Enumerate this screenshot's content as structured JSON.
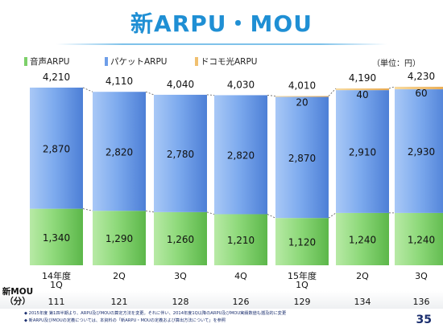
{
  "title": "新ARPU・MOU",
  "unit_label": "（単位：円）",
  "legend": [
    {
      "label": "音声ARPU",
      "color": "#7dd06a"
    },
    {
      "label": "パケットARPU",
      "color": "#6e9ee8"
    },
    {
      "label": "ドコモ光ARPU",
      "color": "#f0c070"
    }
  ],
  "chart_data": {
    "type": "bar",
    "stacked": true,
    "categories": [
      "14年度\n1Q",
      "2Q",
      "3Q",
      "4Q",
      "15年度\n1Q",
      "2Q",
      "3Q"
    ],
    "series": [
      {
        "name": "音声ARPU",
        "values": [
          1340,
          1290,
          1260,
          1210,
          1120,
          1240,
          1240
        ],
        "labels": [
          "1,340",
          "1,290",
          "1,260",
          "1,210",
          "1,120",
          "1,240",
          "1,240"
        ],
        "color": "#7dd06a"
      },
      {
        "name": "パケットARPU",
        "values": [
          2870,
          2820,
          2780,
          2820,
          2870,
          2910,
          2930
        ],
        "labels": [
          "2,870",
          "2,820",
          "2,780",
          "2,820",
          "2,870",
          "2,910",
          "2,930"
        ],
        "color": "#6e9ee8"
      },
      {
        "name": "ドコモ光ARPU",
        "values": [
          null,
          null,
          null,
          null,
          20,
          40,
          60
        ],
        "labels": [
          "",
          "",
          "",
          "",
          "20",
          "40",
          "60"
        ],
        "color": "#f0c070"
      }
    ],
    "totals": [
      4210,
      4110,
      4040,
      4030,
      4010,
      4190,
      4230
    ],
    "total_labels": [
      "4,210",
      "4,110",
      "4,040",
      "4,030",
      "4,010",
      "4,190",
      "4,230"
    ],
    "ylim": [
      0,
      4700
    ]
  },
  "mou": {
    "label": "新MOU\n（分）",
    "values": [
      "111",
      "121",
      "128",
      "126",
      "129",
      "134",
      "136"
    ]
  },
  "notes": [
    "◆ 2015年度 第1四半期より、ARPU及びMOUの算定方法を変更。それに伴い、2014年度1Q以降のARPU及びMOU実績数値も遡及的に変更",
    "◆ 新ARPU及びMOUの定義については、本資料の「新ARPU・MOUの定義および算出方法について」を参照"
  ],
  "page_number": "35"
}
